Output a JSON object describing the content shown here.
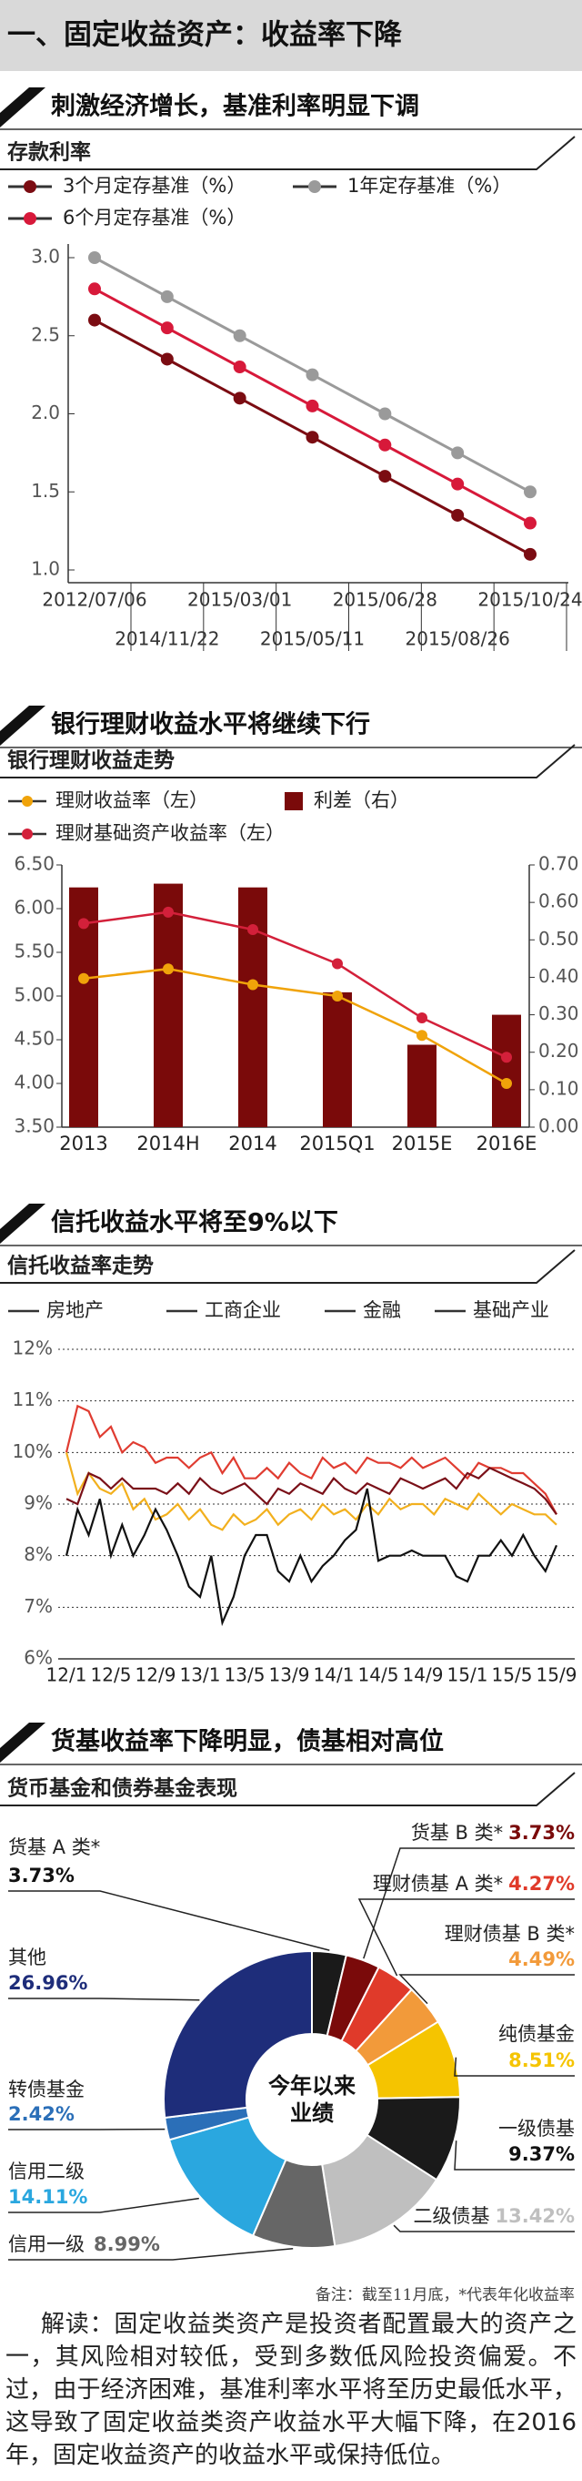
{
  "header": {
    "title": "一、固定收益资产：收益率下降"
  },
  "chart_data": [
    {
      "type": "line",
      "title": "刺激经济增长，基准利率明显下调",
      "subtitle": "存款利率",
      "categories": [
        "2012/07/06",
        "2014/11/22",
        "2015/03/01",
        "2015/05/11",
        "2015/06/28",
        "2015/08/26",
        "2015/10/24"
      ],
      "series": [
        {
          "name": "3个月定存基准（%）",
          "color": "#7b0c12",
          "values": [
            2.6,
            2.35,
            2.1,
            1.85,
            1.6,
            1.35,
            1.1
          ]
        },
        {
          "name": "1年定存基准（%）",
          "color": "#9a9a9a",
          "values": [
            3.0,
            2.75,
            2.5,
            2.25,
            2.0,
            1.75,
            1.5
          ]
        },
        {
          "name": "6个月定存基准（%）",
          "color": "#d7193a",
          "values": [
            2.8,
            2.55,
            2.3,
            2.05,
            1.8,
            1.55,
            1.3
          ]
        }
      ],
      "ylim": [
        1,
        3
      ],
      "yticks": [
        {
          "value": 1,
          "label": "1.0"
        },
        1.5,
        {
          "value": 2,
          "label": "2.0"
        },
        2.5,
        {
          "value": 3,
          "label": "3.0"
        }
      ]
    },
    {
      "type": "combo",
      "title": "银行理财收益水平将继续下行",
      "subtitle": "银行理财收益走势",
      "categories": [
        "2013",
        "2014H",
        "2014",
        "2015Q1",
        "2015E",
        "2016E"
      ],
      "series": [
        {
          "name": "理财收益率（左）",
          "type": "line",
          "color": "#f0a30a",
          "values": [
            5.2,
            5.31,
            5.13,
            5.0,
            4.55,
            4.0
          ]
        },
        {
          "name": "利差（右）",
          "type": "bar",
          "axis": "y2",
          "color": "#7a0a0a",
          "values": [
            0.64,
            0.65,
            0.64,
            0.36,
            0.22,
            0.3
          ]
        },
        {
          "name": "理财基础资产收益率（左）",
          "type": "line",
          "color": "#d3203a",
          "values": [
            5.83,
            5.96,
            5.76,
            5.37,
            4.75,
            4.3
          ]
        }
      ],
      "ylim": [
        3.5,
        6.5
      ],
      "yticks": [
        {
          "value": 3.5,
          "label": "3.50"
        },
        {
          "value": 4,
          "label": "4.00"
        },
        {
          "value": 4.5,
          "label": "4.50"
        },
        {
          "value": 5,
          "label": "5.00"
        },
        {
          "value": 5.5,
          "label": "5.50"
        },
        {
          "value": 6,
          "label": "6.00"
        },
        {
          "value": 6.5,
          "label": "6.50"
        }
      ],
      "y2lim": [
        0,
        0.7
      ],
      "y2ticks": [
        {
          "value": 0,
          "label": "0.00"
        },
        {
          "value": 0.1,
          "label": "0.10"
        },
        {
          "value": 0.2,
          "label": "0.20"
        },
        {
          "value": 0.3,
          "label": "0.30"
        },
        {
          "value": 0.4,
          "label": "0.40"
        },
        {
          "value": 0.5,
          "label": "0.50"
        },
        {
          "value": 0.6,
          "label": "0.60"
        },
        {
          "value": 0.7,
          "label": "0.70"
        }
      ]
    },
    {
      "type": "line",
      "title": "信托收益水平将至9%以下",
      "subtitle": "信托收益率走势",
      "categories": [
        "12/1",
        null,
        null,
        null,
        "12/5",
        null,
        null,
        null,
        "12/9",
        null,
        null,
        null,
        "13/1",
        null,
        null,
        null,
        "13/5",
        null,
        null,
        null,
        "13/9",
        null,
        null,
        null,
        "14/1",
        null,
        null,
        null,
        "14/5",
        null,
        null,
        null,
        "14/9",
        null,
        null,
        null,
        "15/1",
        null,
        null,
        null,
        "15/5",
        null,
        null,
        null,
        "15/9"
      ],
      "series": [
        {
          "name": "房地产",
          "color": "#e03c31",
          "values": [
            10.0,
            10.9,
            10.8,
            10.3,
            10.5,
            10.0,
            10.2,
            10.1,
            9.8,
            9.9,
            9.9,
            9.7,
            9.9,
            10.0,
            9.6,
            9.9,
            9.5,
            9.5,
            9.7,
            9.5,
            9.8,
            9.6,
            9.5,
            9.9,
            9.7,
            9.8,
            9.6,
            9.9,
            9.8,
            9.8,
            9.7,
            9.9,
            9.7,
            9.8,
            9.9,
            9.7,
            9.5,
            9.8,
            9.7,
            9.7,
            9.6,
            9.6,
            9.4,
            9.2,
            8.8
          ]
        },
        {
          "name": "工商企业",
          "color": "#f2b01e",
          "values": [
            10.0,
            9.2,
            9.6,
            9.3,
            9.2,
            9.4,
            8.9,
            9.1,
            8.7,
            8.8,
            9.0,
            8.7,
            8.9,
            8.6,
            8.5,
            8.8,
            8.6,
            8.7,
            8.9,
            8.6,
            8.8,
            8.9,
            8.7,
            9.0,
            8.8,
            8.9,
            8.7,
            9.0,
            8.8,
            9.1,
            8.9,
            9.0,
            9.0,
            8.8,
            9.1,
            9.0,
            8.9,
            9.2,
            9.0,
            8.8,
            9.0,
            8.9,
            8.8,
            8.8,
            8.6
          ]
        },
        {
          "name": "金融",
          "color": "#111111",
          "values": [
            8.0,
            8.9,
            8.4,
            9.1,
            8.0,
            8.6,
            8.0,
            8.4,
            8.9,
            8.5,
            8.0,
            7.4,
            7.2,
            8.0,
            6.7,
            7.2,
            8.0,
            8.4,
            8.4,
            7.7,
            7.5,
            8.0,
            7.5,
            7.8,
            8.0,
            8.3,
            8.5,
            9.3,
            7.9,
            8.0,
            8.0,
            8.1,
            8.0,
            8.0,
            8.0,
            7.6,
            7.5,
            8.0,
            8.0,
            8.3,
            8.0,
            8.4,
            8.0,
            7.7,
            8.2
          ]
        },
        {
          "name": "基础产业",
          "color": "#7a1018",
          "values": [
            9.1,
            9.0,
            9.6,
            9.5,
            9.3,
            9.5,
            9.3,
            9.3,
            9.3,
            9.2,
            9.4,
            9.2,
            9.5,
            9.3,
            9.2,
            9.3,
            9.4,
            9.2,
            9.0,
            9.3,
            9.2,
            9.4,
            9.3,
            9.2,
            9.5,
            9.3,
            9.2,
            9.4,
            9.3,
            9.2,
            9.5,
            9.4,
            9.3,
            9.4,
            9.5,
            9.3,
            9.6,
            9.5,
            9.7,
            9.6,
            9.5,
            9.4,
            9.3,
            9.1,
            8.8
          ]
        }
      ],
      "ylim": [
        6,
        12
      ],
      "yticks": [
        {
          "value": 6,
          "label": "6%"
        },
        {
          "value": 7,
          "label": "7%"
        },
        {
          "value": 8,
          "label": "8%"
        },
        {
          "value": 9,
          "label": "9%"
        },
        {
          "value": 10,
          "label": "10%"
        },
        {
          "value": 11,
          "label": "11%"
        },
        {
          "value": 12,
          "label": "12%"
        }
      ],
      "grid": true
    },
    {
      "type": "pie",
      "donut": true,
      "title": "货基收益率下降明显，债基相对高位",
      "subtitle": "货币基金和债券基金表现",
      "center_label": "今年以来业绩",
      "categories": [
        "货基 A 类*",
        "货基 B 类*",
        "理财债基 A 类*",
        "理财债基 B 类*",
        "纯债基金",
        "一级债基",
        "二级债基",
        "信用一级",
        "信用二级",
        "转债基金",
        "其他"
      ],
      "values": [
        3.73,
        3.73,
        4.27,
        4.49,
        8.51,
        9.37,
        13.42,
        8.99,
        14.11,
        2.42,
        26.96
      ],
      "value_labels": [
        "3.73%",
        "3.73%",
        "4.27%",
        "4.49%",
        "8.51%",
        "9.37%",
        "13.42%",
        "8.99%",
        "14.11%",
        "2.42%",
        "26.96%"
      ],
      "colors": [
        "#1a1a1a",
        "#7a0a0a",
        "#e03a2a",
        "#f29a3a",
        "#f5c400",
        "#1a1a1a",
        "#bfbfbf",
        "#666666",
        "#2aa7df",
        "#2b6fb8",
        "#1e2d7a"
      ]
    }
  ],
  "note": "备注：截至11月底，*代表年化收益率",
  "commentary": "解读：固定收益类资产是投资者配置最大的资产之一，其风险相对较低，受到多数低风险投资偏爱。不过，由于经济困难，基准利率水平将至历史最低水平，这导致了固定收益类资产收益水平大幅下降，在2016年，固定收益资产的收益水平或保持低位。"
}
